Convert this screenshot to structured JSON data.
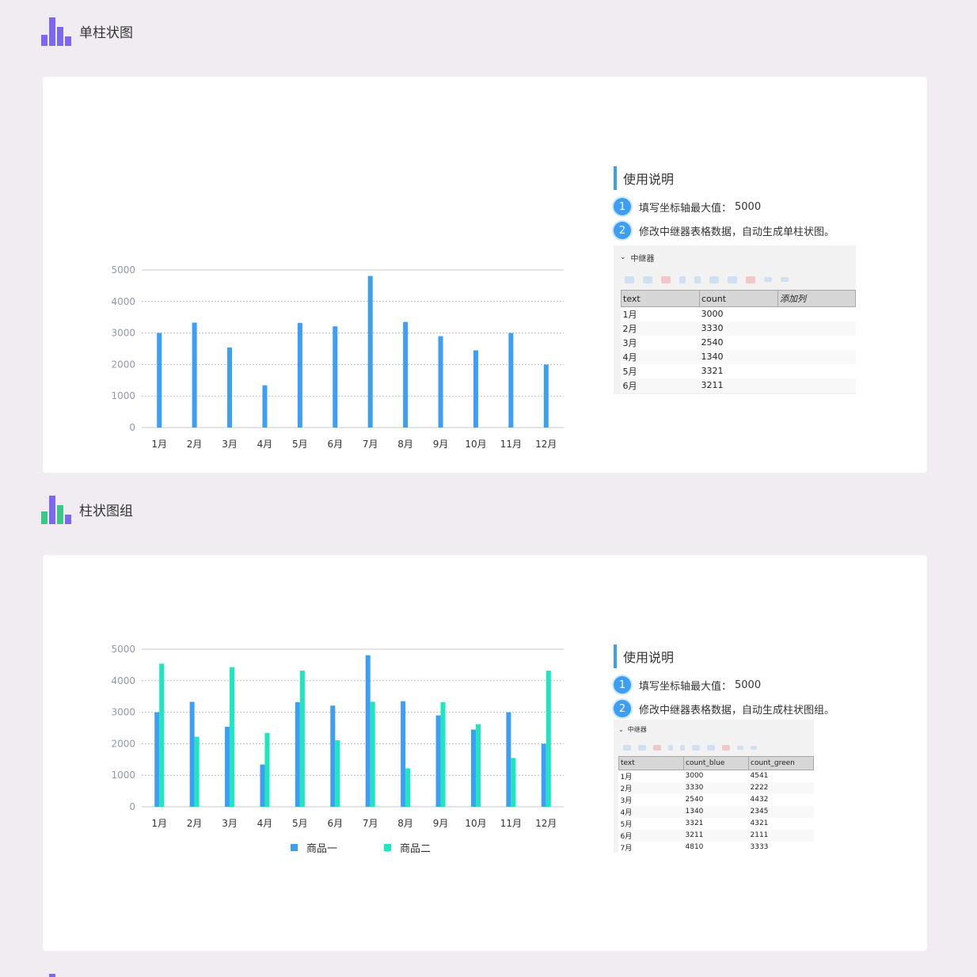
{
  "sections": [
    {
      "title": "单柱状图",
      "usage": {
        "title": "使用说明",
        "steps": [
          {
            "num": "1",
            "text": "填写坐标轴最大值：",
            "value": "5000"
          },
          {
            "num": "2",
            "text": "修改中继器表格数据，自动生成单柱状图。"
          }
        ]
      },
      "repeater": {
        "label": "中继器",
        "columns": [
          "text",
          "count",
          "添加列"
        ],
        "rows": [
          [
            "1月",
            "3000"
          ],
          [
            "2月",
            "3330"
          ],
          [
            "3月",
            "2540"
          ],
          [
            "4月",
            "1340"
          ],
          [
            "5月",
            "3321"
          ],
          [
            "6月",
            "3211"
          ]
        ]
      }
    },
    {
      "title": "柱状图组",
      "usage": {
        "title": "使用说明",
        "steps": [
          {
            "num": "1",
            "text": "填写坐标轴最大值：",
            "value": "5000"
          },
          {
            "num": "2",
            "text": "修改中继器表格数据，自动生成柱状图组。"
          }
        ]
      },
      "repeater": {
        "label": "中继器",
        "columns": [
          "text",
          "count_blue",
          "count_green"
        ],
        "rows": [
          [
            "1月",
            "3000",
            "4541"
          ],
          [
            "2月",
            "3330",
            "2222"
          ],
          [
            "3月",
            "2540",
            "4432"
          ],
          [
            "4月",
            "1340",
            "2345"
          ],
          [
            "5月",
            "3321",
            "4321"
          ],
          [
            "6月",
            "3211",
            "2111"
          ],
          [
            "7月",
            "4810",
            "3333"
          ]
        ]
      }
    }
  ],
  "colors": {
    "blue": "#3d9ef5",
    "green": "#1ee6be",
    "purple": "#7b68ee",
    "logo_green": "#3cc687"
  },
  "chart_data": [
    {
      "type": "bar",
      "categories": [
        "1月",
        "2月",
        "3月",
        "4月",
        "5月",
        "6月",
        "7月",
        "8月",
        "9月",
        "10月",
        "11月",
        "12月"
      ],
      "values": [
        3000,
        3330,
        2540,
        1340,
        3321,
        3211,
        4810,
        3350,
        2900,
        2450,
        3000,
        2000
      ],
      "yticks": [
        0,
        1000,
        2000,
        3000,
        4000,
        5000
      ],
      "ylim": [
        0,
        5000
      ],
      "title": "",
      "xlabel": "",
      "ylabel": "",
      "grid": true
    },
    {
      "type": "bar",
      "categories": [
        "1月",
        "2月",
        "3月",
        "4月",
        "5月",
        "6月",
        "7月",
        "8月",
        "9月",
        "10月",
        "11月",
        "12月"
      ],
      "series": [
        {
          "name": "商品一",
          "color": "#3d9ef5",
          "values": [
            3000,
            3330,
            2540,
            1340,
            3321,
            3211,
            4810,
            3350,
            2900,
            2450,
            3000,
            2000
          ]
        },
        {
          "name": "商品二",
          "color": "#1ee6be",
          "values": [
            4541,
            2222,
            4432,
            2345,
            4321,
            2111,
            3333,
            1220,
            3320,
            2620,
            1550,
            4320
          ]
        }
      ],
      "yticks": [
        0,
        1000,
        2000,
        3000,
        4000,
        5000
      ],
      "ylim": [
        0,
        5000
      ],
      "title": "",
      "xlabel": "",
      "ylabel": "",
      "grid": true,
      "legend": "bottom"
    }
  ]
}
